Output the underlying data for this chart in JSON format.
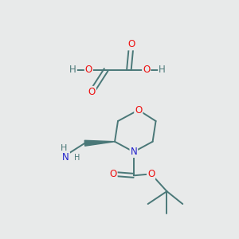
{
  "bg_color": "#e8eaea",
  "bond_color": "#4a7878",
  "atom_colors": {
    "O": "#ee1111",
    "N": "#2222cc",
    "H": "#4a7878"
  },
  "font_size": 8.5,
  "bond_lw": 1.4
}
